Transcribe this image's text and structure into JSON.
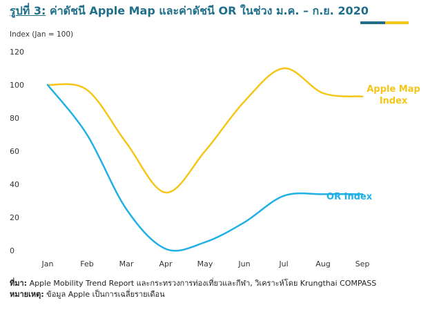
{
  "figure": {
    "title_prefix": "รูปที่ 3:",
    "title_rest": "ค่าดัชนี Apple Map และค่าดัชนี OR ในช่วง ม.ค. – ก.ย. 2020",
    "accent_colors": [
      "#1f6f8b",
      "#f5c518"
    ]
  },
  "chart_data": {
    "type": "line",
    "ylabel": "Index (Jan = 100)",
    "ylim": [
      0,
      120
    ],
    "yticks": [
      0,
      20,
      40,
      60,
      80,
      100,
      120
    ],
    "categories": [
      "Jan",
      "Feb",
      "Mar",
      "Apr",
      "May",
      "Jun",
      "Jul",
      "Aug",
      "Sep"
    ],
    "grid": false,
    "series": [
      {
        "name": "Apple Map Index",
        "label_lines": [
          "Apple Map",
          "Index"
        ],
        "color": "#f5c518",
        "values": [
          100,
          97,
          65,
          35,
          60,
          90,
          110,
          95,
          93
        ]
      },
      {
        "name": "OR Index",
        "label_lines": [
          "OR Index"
        ],
        "color": "#1fb0e6",
        "values": [
          100,
          70,
          25,
          1,
          5,
          17,
          33,
          34,
          34
        ]
      }
    ]
  },
  "footer": {
    "source_label": "ที่มา:",
    "source_text": " Apple Mobility Trend Report และกระทรวงการท่องเที่ยวและกีฬา, วิเคราะห์โดย Krungthai COMPASS",
    "note_label": "หมายเหตุ:",
    "note_text": " ข้อมูล Apple เป็นการเฉลี่ยรายเดือน"
  }
}
